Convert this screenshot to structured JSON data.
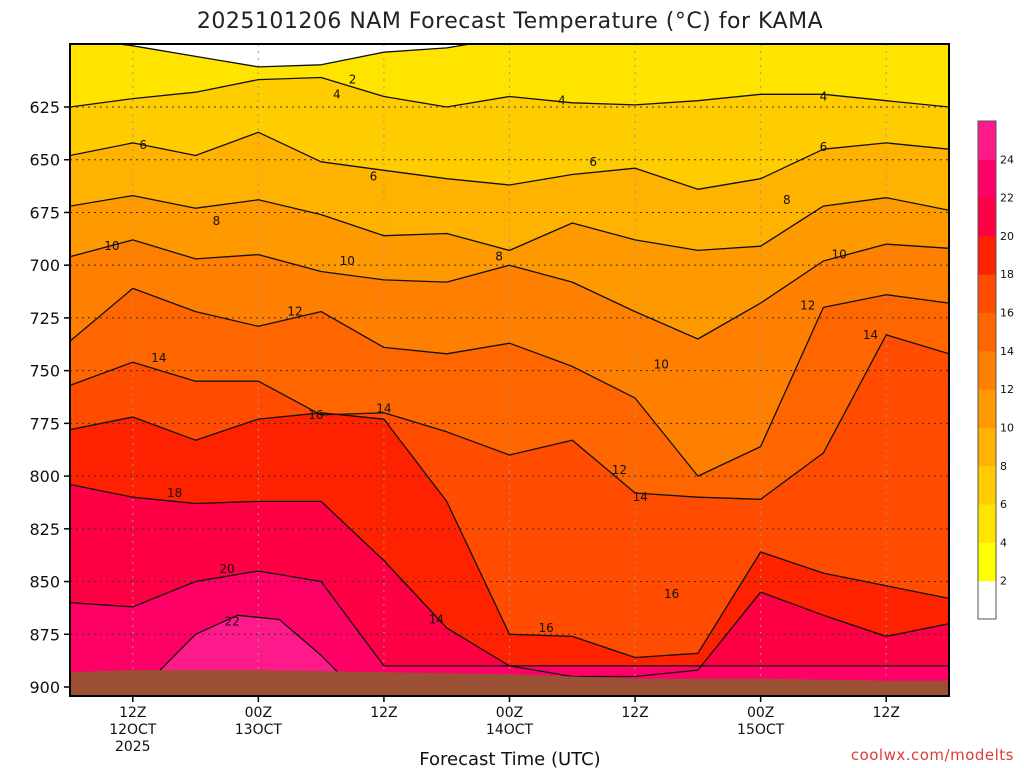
{
  "chart_data": {
    "type": "heatmap",
    "title": "2025101206 NAM Forecast Temperature (°C) for KAMA",
    "xlabel": "Forecast Time (UTC)",
    "ylabel": "",
    "credit": "coolwx.com/modelts",
    "y_axis": {
      "range": [
        900,
        600
      ],
      "ticks": [
        625,
        650,
        675,
        700,
        725,
        750,
        775,
        800,
        825,
        850,
        875,
        900
      ]
    },
    "x_axis": {
      "ticks": [
        {
          "t": 6,
          "lines": [
            "12Z",
            "12OCT",
            "2025"
          ]
        },
        {
          "t": 18,
          "lines": [
            "00Z",
            "13OCT"
          ]
        },
        {
          "t": 30,
          "lines": [
            "12Z"
          ]
        },
        {
          "t": 42,
          "lines": [
            "00Z",
            "14OCT"
          ]
        },
        {
          "t": 54,
          "lines": [
            "12Z"
          ]
        },
        {
          "t": 66,
          "lines": [
            "00Z",
            "15OCT"
          ]
        },
        {
          "t": 78,
          "lines": [
            "12Z"
          ]
        }
      ],
      "range": [
        0,
        84
      ]
    },
    "grid": true,
    "colorbar": {
      "labels": [
        2,
        4,
        6,
        8,
        10,
        12,
        14,
        16,
        18,
        20,
        22,
        24
      ],
      "colors": [
        "#ffffff",
        "#ffff00",
        "#ffe400",
        "#ffcc00",
        "#ffb300",
        "#ff9900",
        "#ff7f00",
        "#ff6600",
        "#ff4c00",
        "#ff2200",
        "#ff0044",
        "#ff0066",
        "#ff1a8c"
      ]
    },
    "contour_levels": [
      2,
      4,
      6,
      8,
      10,
      12,
      14,
      16,
      18,
      20,
      22
    ],
    "contours": [
      {
        "level": 2,
        "points": [
          [
            0,
            592
          ],
          [
            6,
            596
          ],
          [
            12,
            601
          ],
          [
            18,
            606
          ],
          [
            24,
            605
          ],
          [
            30,
            599
          ],
          [
            36,
            597
          ],
          [
            42,
            592
          ],
          [
            48,
            587
          ],
          [
            54,
            584
          ],
          [
            60,
            580
          ],
          [
            66,
            580
          ],
          [
            72,
            580
          ],
          [
            78,
            582
          ],
          [
            84,
            586
          ]
        ]
      },
      {
        "level": 4,
        "points": [
          [
            0,
            625
          ],
          [
            6,
            621
          ],
          [
            12,
            618
          ],
          [
            18,
            612
          ],
          [
            24,
            611
          ],
          [
            30,
            620
          ],
          [
            36,
            625
          ],
          [
            42,
            620
          ],
          [
            48,
            623
          ],
          [
            54,
            624
          ],
          [
            60,
            622
          ],
          [
            66,
            619
          ],
          [
            72,
            619
          ],
          [
            78,
            622
          ],
          [
            84,
            625
          ]
        ]
      },
      {
        "level": 6,
        "points": [
          [
            0,
            648
          ],
          [
            6,
            642
          ],
          [
            12,
            648
          ],
          [
            18,
            637
          ],
          [
            24,
            651
          ],
          [
            30,
            655
          ],
          [
            36,
            659
          ],
          [
            42,
            662
          ],
          [
            48,
            657
          ],
          [
            54,
            654
          ],
          [
            60,
            664
          ],
          [
            66,
            659
          ],
          [
            72,
            645
          ],
          [
            78,
            642
          ],
          [
            84,
            645
          ]
        ]
      },
      {
        "level": 8,
        "points": [
          [
            0,
            672
          ],
          [
            6,
            667
          ],
          [
            12,
            673
          ],
          [
            18,
            669
          ],
          [
            24,
            676
          ],
          [
            30,
            686
          ],
          [
            36,
            685
          ],
          [
            42,
            693
          ],
          [
            48,
            680
          ],
          [
            54,
            688
          ],
          [
            60,
            693
          ],
          [
            66,
            691
          ],
          [
            72,
            672
          ],
          [
            78,
            668
          ],
          [
            84,
            674
          ]
        ]
      },
      {
        "level": 10,
        "points": [
          [
            0,
            696
          ],
          [
            6,
            688
          ],
          [
            12,
            697
          ],
          [
            18,
            695
          ],
          [
            24,
            703
          ],
          [
            30,
            707
          ],
          [
            36,
            708
          ],
          [
            42,
            700
          ],
          [
            48,
            708
          ],
          [
            54,
            722
          ],
          [
            60,
            735
          ],
          [
            66,
            718
          ],
          [
            72,
            698
          ],
          [
            78,
            690
          ],
          [
            84,
            692
          ]
        ]
      },
      {
        "level": 12,
        "points": [
          [
            0,
            736
          ],
          [
            6,
            711
          ],
          [
            12,
            722
          ],
          [
            18,
            729
          ],
          [
            24,
            722
          ],
          [
            30,
            739
          ],
          [
            36,
            742
          ],
          [
            42,
            737
          ],
          [
            48,
            748
          ],
          [
            54,
            763
          ],
          [
            60,
            800
          ],
          [
            66,
            786
          ],
          [
            72,
            720
          ],
          [
            78,
            714
          ],
          [
            84,
            718
          ]
        ]
      },
      {
        "level": 14,
        "points": [
          [
            0,
            757
          ],
          [
            6,
            746
          ],
          [
            12,
            755
          ],
          [
            18,
            755
          ],
          [
            24,
            771
          ],
          [
            30,
            770
          ],
          [
            36,
            779
          ],
          [
            42,
            790
          ],
          [
            48,
            783
          ],
          [
            54,
            808
          ],
          [
            60,
            810
          ],
          [
            66,
            811
          ],
          [
            72,
            789
          ],
          [
            78,
            733
          ],
          [
            84,
            742
          ]
        ]
      },
      {
        "level": 16,
        "points": [
          [
            0,
            778
          ],
          [
            6,
            772
          ],
          [
            12,
            783
          ],
          [
            18,
            773
          ],
          [
            24,
            770
          ],
          [
            30,
            773
          ],
          [
            36,
            812
          ],
          [
            42,
            875
          ],
          [
            48,
            876
          ],
          [
            54,
            886
          ],
          [
            60,
            884
          ],
          [
            66,
            836
          ],
          [
            72,
            846
          ],
          [
            78,
            852
          ],
          [
            84,
            858
          ]
        ]
      },
      {
        "level": 18,
        "points": [
          [
            0,
            804
          ],
          [
            6,
            810
          ],
          [
            12,
            813
          ],
          [
            18,
            812
          ],
          [
            24,
            812
          ],
          [
            30,
            840
          ],
          [
            36,
            872
          ],
          [
            42,
            890
          ],
          [
            48,
            895
          ],
          [
            54,
            895
          ],
          [
            60,
            892
          ],
          [
            66,
            855
          ],
          [
            72,
            866
          ],
          [
            78,
            876
          ],
          [
            84,
            870
          ]
        ]
      },
      {
        "level": 20,
        "points": [
          [
            0,
            860
          ],
          [
            6,
            862
          ],
          [
            12,
            850
          ],
          [
            18,
            845
          ],
          [
            24,
            850
          ],
          [
            30,
            890
          ],
          [
            84,
            890
          ]
        ]
      },
      {
        "level": 22,
        "points": [
          [
            8,
            895
          ],
          [
            12,
            875
          ],
          [
            16,
            866
          ],
          [
            20,
            868
          ],
          [
            24,
            885
          ],
          [
            26,
            895
          ]
        ]
      }
    ],
    "contour_labels": [
      {
        "level": 2,
        "t": 27,
        "p": 612
      },
      {
        "level": 4,
        "t": 25.5,
        "p": 619
      },
      {
        "level": 4,
        "t": 47,
        "p": 622
      },
      {
        "level": 4,
        "t": 72,
        "p": 620
      },
      {
        "level": 6,
        "t": 7,
        "p": 643
      },
      {
        "level": 6,
        "t": 29,
        "p": 658
      },
      {
        "level": 6,
        "t": 50,
        "p": 651
      },
      {
        "level": 6,
        "t": 72,
        "p": 644
      },
      {
        "level": 8,
        "t": 14,
        "p": 679
      },
      {
        "level": 8,
        "t": 41,
        "p": 696
      },
      {
        "level": 8,
        "t": 68.5,
        "p": 669
      },
      {
        "level": 10,
        "t": 4,
        "p": 691
      },
      {
        "level": 10,
        "t": 26.5,
        "p": 698
      },
      {
        "level": 10,
        "t": 73.5,
        "p": 695
      },
      {
        "level": 10,
        "t": 56.5,
        "p": 747
      },
      {
        "level": 12,
        "t": 21.5,
        "p": 722
      },
      {
        "level": 12,
        "t": 70.5,
        "p": 719
      },
      {
        "level": 12,
        "t": 52.5,
        "p": 797
      },
      {
        "level": 14,
        "t": 8.5,
        "p": 744
      },
      {
        "level": 14,
        "t": 30,
        "p": 768
      },
      {
        "level": 14,
        "t": 54.5,
        "p": 810
      },
      {
        "level": 14,
        "t": 76.5,
        "p": 733
      },
      {
        "level": 14,
        "t": 35,
        "p": 868
      },
      {
        "level": 16,
        "t": 23.5,
        "p": 771
      },
      {
        "level": 16,
        "t": 45.5,
        "p": 872
      },
      {
        "level": 16,
        "t": 57.5,
        "p": 856
      },
      {
        "level": 18,
        "t": 10,
        "p": 808
      },
      {
        "level": 20,
        "t": 15,
        "p": 844
      },
      {
        "level": 22,
        "t": 15.5,
        "p": 869
      }
    ]
  }
}
